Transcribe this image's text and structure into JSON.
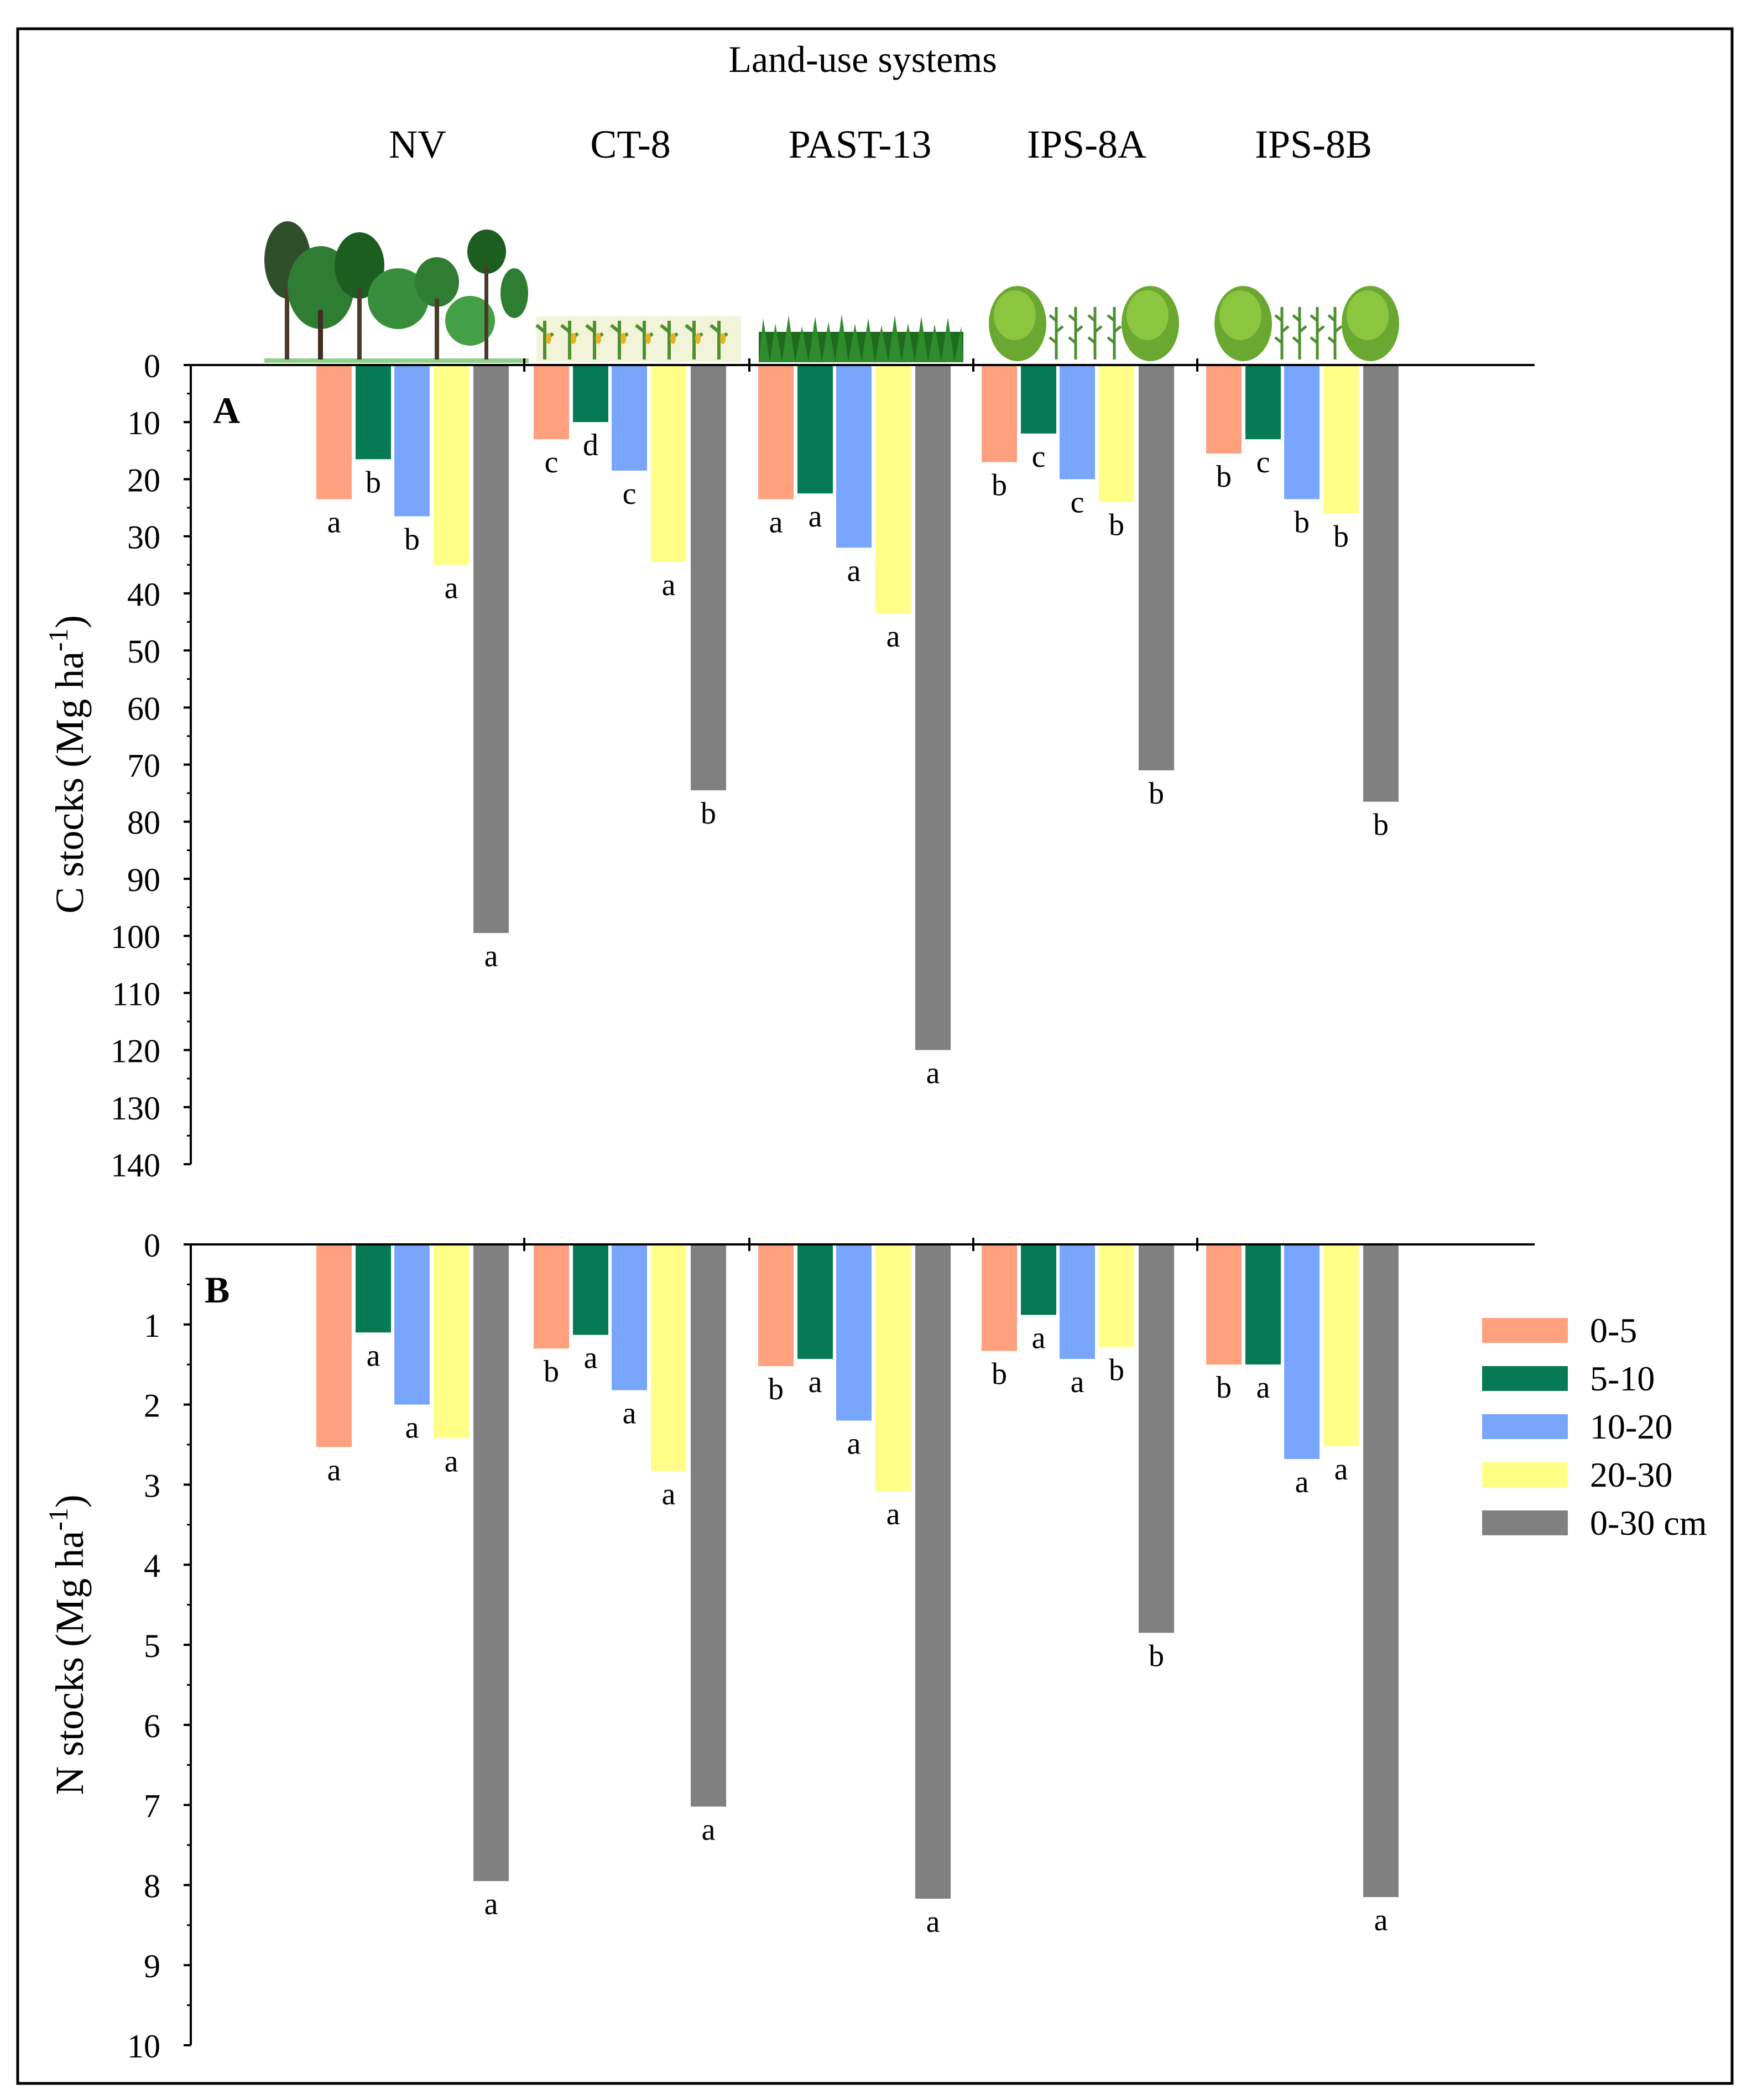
{
  "figure_title": "Land-use systems",
  "illustration_icons": [
    "forest-trees-icon",
    "maize-crop-row-icon",
    "grass-pasture-icon",
    "shrub-and-maize-icon",
    "shrub-and-maize-icon"
  ],
  "colors": {
    "0-5": "#FFA07E",
    "5-10": "#057A55",
    "10-20": "#79A6FD",
    "20-30": "#FFFF87",
    "0-30 cm": "#808080"
  },
  "chart_data": [
    {
      "type": "bar",
      "orientation": "downward",
      "panel_label": "A",
      "title": "Land-use systems",
      "ylabel": "C stocks (Mg ha",
      "ylabel_superscript": "-1",
      "ylabel_close": ")",
      "ylim": [
        0,
        140
      ],
      "yticks": [
        0,
        10,
        20,
        30,
        40,
        50,
        60,
        70,
        80,
        90,
        100,
        110,
        120,
        130,
        140
      ],
      "categories": [
        "NV",
        "CT-8",
        "PAST-13",
        "IPS-8A",
        "IPS-8B"
      ],
      "series": [
        {
          "name": "0-5",
          "values": [
            23.5,
            13,
            23.5,
            17,
            15.5
          ],
          "letters": [
            "a",
            "c",
            "a",
            "b",
            "b"
          ]
        },
        {
          "name": "5-10",
          "values": [
            16.5,
            10,
            22.5,
            12,
            13
          ],
          "letters": [
            "b",
            "d",
            "a",
            "c",
            "c"
          ]
        },
        {
          "name": "10-20",
          "values": [
            26.5,
            18.5,
            32,
            20,
            23.5
          ],
          "letters": [
            "b",
            "c",
            "a",
            "c",
            "b"
          ]
        },
        {
          "name": "20-30",
          "values": [
            35,
            34.5,
            43.5,
            24,
            26
          ],
          "letters": [
            "a",
            "a",
            "a",
            "b",
            "b"
          ]
        },
        {
          "name": "0-30 cm",
          "values": [
            99.5,
            74.5,
            120,
            71,
            76.5
          ],
          "letters": [
            "a",
            "b",
            "a",
            "b",
            "b"
          ]
        }
      ]
    },
    {
      "type": "bar",
      "orientation": "downward",
      "panel_label": "B",
      "ylabel": "N stocks (Mg ha",
      "ylabel_superscript": "-1",
      "ylabel_close": ")",
      "ylim": [
        0,
        10
      ],
      "yticks": [
        0,
        1,
        2,
        3,
        4,
        5,
        6,
        7,
        8,
        9,
        10
      ],
      "categories": [
        "NV",
        "CT-8",
        "PAST-13",
        "IPS-8A",
        "IPS-8B"
      ],
      "series": [
        {
          "name": "0-5",
          "values": [
            2.53,
            1.3,
            1.52,
            1.33,
            1.5
          ],
          "letters": [
            "a",
            "b",
            "b",
            "b",
            "b"
          ]
        },
        {
          "name": "5-10",
          "values": [
            1.1,
            1.13,
            1.43,
            0.88,
            1.5
          ],
          "letters": [
            "a",
            "a",
            "a",
            "a",
            "a"
          ]
        },
        {
          "name": "10-20",
          "values": [
            2.0,
            1.82,
            2.2,
            1.43,
            2.68
          ],
          "letters": [
            "a",
            "a",
            "a",
            "a",
            "a"
          ]
        },
        {
          "name": "20-30",
          "values": [
            2.42,
            2.83,
            3.08,
            1.28,
            2.52
          ],
          "letters": [
            "a",
            "a",
            "a",
            "b",
            "a"
          ]
        },
        {
          "name": "0-30 cm",
          "values": [
            7.95,
            7.02,
            8.17,
            4.85,
            8.15
          ],
          "letters": [
            "a",
            "a",
            "a",
            "b",
            "a"
          ]
        }
      ],
      "legend": {
        "placement": "right",
        "entries": [
          "0-5",
          "5-10",
          "10-20",
          "20-30",
          "0-30 cm"
        ]
      }
    }
  ]
}
